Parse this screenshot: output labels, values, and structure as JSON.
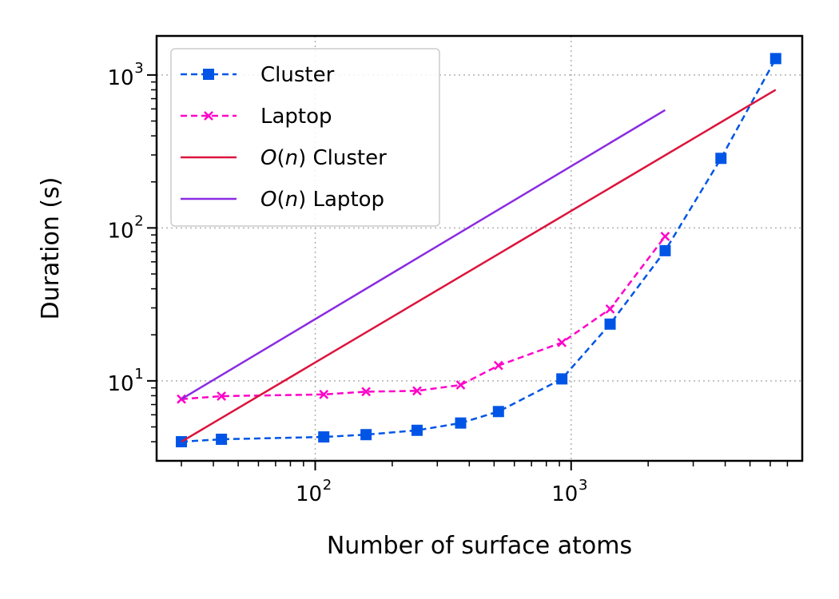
{
  "chart_data": {
    "type": "line",
    "xlabel": "Number of surface atoms",
    "ylabel": "Duration (s)",
    "x_scale": "log",
    "y_scale": "log",
    "xlim": [
      24,
      8000
    ],
    "ylim": [
      3,
      1800
    ],
    "x_ticks": [
      {
        "value": 100,
        "base": "10",
        "exp": "2"
      },
      {
        "value": 1000,
        "base": "10",
        "exp": "3"
      }
    ],
    "y_ticks": [
      {
        "value": 10,
        "base": "10",
        "exp": "1"
      },
      {
        "value": 100,
        "base": "10",
        "exp": "2"
      },
      {
        "value": 1000,
        "base": "10",
        "exp": "3"
      }
    ],
    "grid": true,
    "legend_position": "upper-left",
    "series": [
      {
        "name": "Cluster",
        "color": "#0055e6",
        "style": "dashed",
        "marker": "square",
        "points": [
          [
            30,
            4.0
          ],
          [
            43,
            4.15
          ],
          [
            108,
            4.3
          ],
          [
            158,
            4.45
          ],
          [
            250,
            4.75
          ],
          [
            370,
            5.3
          ],
          [
            520,
            6.3
          ],
          [
            920,
            10.3
          ],
          [
            1420,
            23.5
          ],
          [
            2330,
            71
          ],
          [
            3850,
            285
          ],
          [
            6300,
            1280
          ]
        ]
      },
      {
        "name": "Laptop",
        "color": "#ff00c8",
        "style": "dashed",
        "marker": "x",
        "points": [
          [
            30,
            7.6
          ],
          [
            43,
            7.95
          ],
          [
            108,
            8.15
          ],
          [
            158,
            8.5
          ],
          [
            250,
            8.6
          ],
          [
            370,
            9.4
          ],
          [
            520,
            12.6
          ],
          [
            920,
            17.8
          ],
          [
            1420,
            29.5
          ],
          [
            2330,
            88
          ]
        ]
      },
      {
        "name_prefix": "O",
        "name_var": "n",
        "name_suffix": "Cluster",
        "color": "#dc143c",
        "style": "solid",
        "marker": "none",
        "points": [
          [
            30,
            4.0
          ],
          [
            6300,
            800
          ]
        ]
      },
      {
        "name_prefix": "O",
        "name_var": "n",
        "name_suffix": "Laptop",
        "color": "#8a2be2",
        "style": "solid",
        "marker": "none",
        "points": [
          [
            30,
            7.6
          ],
          [
            2330,
            590
          ]
        ]
      }
    ]
  }
}
